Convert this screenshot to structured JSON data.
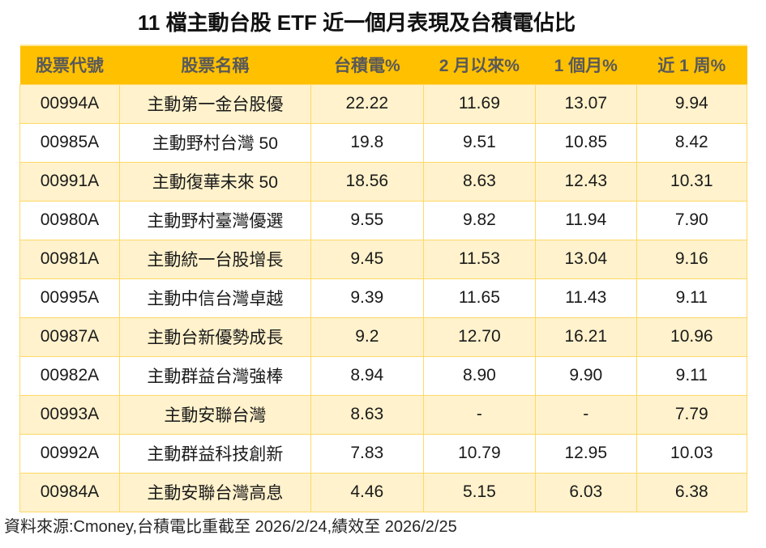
{
  "chart_data": {
    "type": "table",
    "title": "11 檔主動台股 ETF 近一個月表現及台積電佔比",
    "columns": [
      "股票代號",
      "股票名稱",
      "台積電%",
      "2 月以來%",
      "1 個月%",
      "近 1 周%"
    ],
    "rows": [
      [
        "00994A",
        "主動第一金台股優",
        "22.22",
        "11.69",
        "13.07",
        "9.94"
      ],
      [
        "00985A",
        "主動野村台灣 50",
        "19.8",
        "9.51",
        "10.85",
        "8.42"
      ],
      [
        "00991A",
        "主動復華未來 50",
        "18.56",
        "8.63",
        "12.43",
        "10.31"
      ],
      [
        "00980A",
        "主動野村臺灣優選",
        "9.55",
        "9.82",
        "11.94",
        "7.90"
      ],
      [
        "00981A",
        "主動統一台股增長",
        "9.45",
        "11.53",
        "13.04",
        "9.16"
      ],
      [
        "00995A",
        "主動中信台灣卓越",
        "9.39",
        "11.65",
        "11.43",
        "9.11"
      ],
      [
        "00987A",
        "主動台新優勢成長",
        "9.2",
        "12.70",
        "16.21",
        "10.96"
      ],
      [
        "00982A",
        "主動群益台灣強棒",
        "8.94",
        "8.90",
        "9.90",
        "9.11"
      ],
      [
        "00993A",
        "主動安聯台灣",
        "8.63",
        "-",
        "-",
        "7.79"
      ],
      [
        "00992A",
        "主動群益科技創新",
        "7.83",
        "10.79",
        "12.95",
        "10.03"
      ],
      [
        "00984A",
        "主動安聯台灣高息",
        "4.46",
        "5.15",
        "6.03",
        "6.38"
      ]
    ],
    "source_note": "資料來源:Cmoney,台積電比重截至 2026/2/24,績效至 2026/2/25",
    "layout_hints": {
      "stripe_pattern": "odd rows (1st, 3rd, ...) shaded cream, even rows white",
      "alignment": "all cells centered"
    }
  },
  "colors": {
    "header_bg": "#FFC000",
    "header_text": "#595959",
    "row_stripe_bg": "#FFF2CC",
    "row_bg": "#FFFFFF",
    "grid_border": "#FFD966",
    "body_text": "#1A1A1A"
  }
}
